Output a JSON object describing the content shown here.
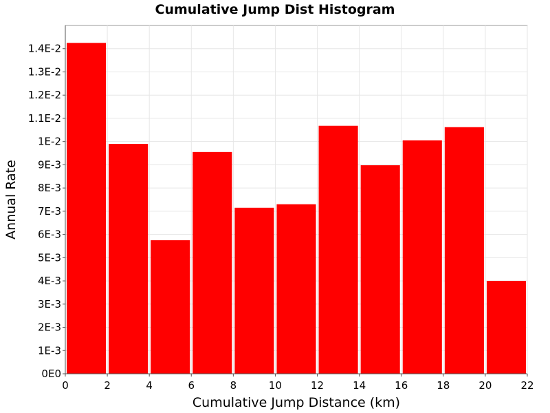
{
  "chart_data": {
    "type": "bar",
    "title": "Cumulative Jump Dist Histogram",
    "xlabel": "Cumulative Jump Distance (km)",
    "ylabel": "Annual Rate",
    "xlim": [
      0,
      22
    ],
    "ylim": [
      0,
      0.015
    ],
    "grid": true,
    "bar_color": "#ff0000",
    "bins": [
      {
        "x0": 0,
        "x1": 2,
        "value": 0.01425
      },
      {
        "x0": 2,
        "x1": 4,
        "value": 0.0099
      },
      {
        "x0": 4,
        "x1": 6,
        "value": 0.00575
      },
      {
        "x0": 6,
        "x1": 8,
        "value": 0.00955
      },
      {
        "x0": 8,
        "x1": 10,
        "value": 0.00715
      },
      {
        "x0": 10,
        "x1": 12,
        "value": 0.0073
      },
      {
        "x0": 12,
        "x1": 14,
        "value": 0.01068
      },
      {
        "x0": 14,
        "x1": 16,
        "value": 0.00898
      },
      {
        "x0": 16,
        "x1": 18,
        "value": 0.01005
      },
      {
        "x0": 18,
        "x1": 20,
        "value": 0.01062
      },
      {
        "x0": 20,
        "x1": 22,
        "value": 0.004
      }
    ],
    "x_ticks": [
      {
        "value": 0,
        "label": "0"
      },
      {
        "value": 2,
        "label": "2"
      },
      {
        "value": 4,
        "label": "4"
      },
      {
        "value": 6,
        "label": "6"
      },
      {
        "value": 8,
        "label": "8"
      },
      {
        "value": 10,
        "label": "10"
      },
      {
        "value": 12,
        "label": "12"
      },
      {
        "value": 14,
        "label": "14"
      },
      {
        "value": 16,
        "label": "16"
      },
      {
        "value": 18,
        "label": "18"
      },
      {
        "value": 20,
        "label": "20"
      },
      {
        "value": 22,
        "label": "22"
      }
    ],
    "y_ticks": [
      {
        "value": 0,
        "label": "0E0"
      },
      {
        "value": 0.001,
        "label": "1E-3"
      },
      {
        "value": 0.002,
        "label": "2E-3"
      },
      {
        "value": 0.003,
        "label": "3E-3"
      },
      {
        "value": 0.004,
        "label": "4E-3"
      },
      {
        "value": 0.005,
        "label": "5E-3"
      },
      {
        "value": 0.006,
        "label": "6E-3"
      },
      {
        "value": 0.007,
        "label": "7E-3"
      },
      {
        "value": 0.008,
        "label": "8E-3"
      },
      {
        "value": 0.009,
        "label": "9E-3"
      },
      {
        "value": 0.01,
        "label": "1E-2"
      },
      {
        "value": 0.011,
        "label": "1.1E-2"
      },
      {
        "value": 0.012,
        "label": "1.2E-2"
      },
      {
        "value": 0.013,
        "label": "1.3E-2"
      },
      {
        "value": 0.014,
        "label": "1.4E-2"
      }
    ]
  }
}
